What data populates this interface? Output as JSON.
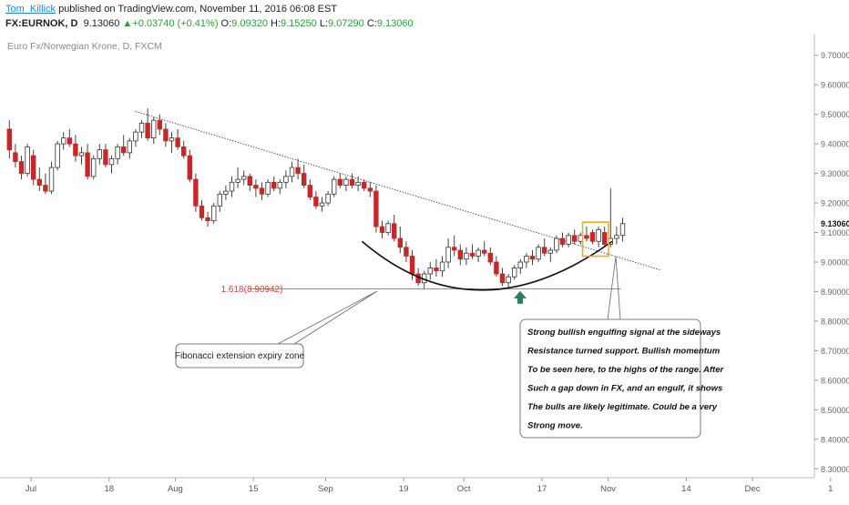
{
  "header": {
    "user": "Tom_Killick",
    "published_text": " published on TradingView.com, November 11, 2016 06:08 EST",
    "symbol": "FX:EURNOK, D",
    "last": "9.13060",
    "change_arrow": "▲",
    "change": "+0.03740 (+0.41%)",
    "o_label": "O:",
    "o_value": "9.09320",
    "h_label": "H:",
    "h_value": "9.15250",
    "l_label": "L:",
    "l_value": "9.07290",
    "c_label": "C:",
    "c_value": "9.13060"
  },
  "chart_data": {
    "type": "candlestick",
    "title": "Euro Fx/Norwegian Krone, D, FXCM",
    "ylim": [
      8.27,
      9.77
    ],
    "y_ticks": [
      9.7,
      9.6,
      9.5,
      9.4,
      9.3,
      9.2,
      9.1,
      9.0,
      8.9,
      8.8,
      8.7,
      8.6,
      8.5,
      8.4,
      8.3
    ],
    "y_tick_labels": [
      "9.70000",
      "9.60000",
      "9.50000",
      "9.40000",
      "9.30000",
      "9.20000",
      "9.10000",
      "9.00000",
      "8.90000",
      "8.80000",
      "8.70000",
      "8.60000",
      "8.50000",
      "8.40000",
      "8.30000"
    ],
    "x_tick_labels": [
      "Jul",
      "18",
      "Aug",
      "15",
      "Sep",
      "19",
      "Oct",
      "17",
      "Nov",
      "14",
      "Dec",
      "1"
    ],
    "x_tick_index": [
      0,
      13,
      24,
      37,
      49,
      62,
      72,
      85,
      96,
      109,
      120,
      133
    ],
    "last_price_label": "9.13060",
    "last_price": 9.1306,
    "fib_label": "1.618(8.90942)",
    "fib_level": 8.90942,
    "fib_start_index": 31,
    "grid": false,
    "colors": {
      "up": "#ffffff",
      "down": "#c62828",
      "wick": "#444444",
      "fib": "#e53935",
      "box": "#f5a623",
      "arrow": "#2e7d5b",
      "trendline": "#555555"
    },
    "trendline": {
      "from_index": 21,
      "from_value": 9.51,
      "to_index": 104,
      "to_value": 9.0
    },
    "curve": {
      "from_index": 59,
      "from_value": 9.07,
      "low_index": 78,
      "low_value": 8.905,
      "to_index": 100,
      "to_value": 9.07
    },
    "highlight_box": {
      "from_index": 96,
      "to_index": 99,
      "low": 9.02,
      "high": 9.135
    },
    "arrow_index": 85,
    "arrow_value": 8.905,
    "candles": [
      {
        "i": 0,
        "o": 9.45,
        "h": 9.48,
        "l": 9.35,
        "c": 9.38
      },
      {
        "i": 1,
        "o": 9.37,
        "h": 9.4,
        "l": 9.32,
        "c": 9.34
      },
      {
        "i": 2,
        "o": 9.34,
        "h": 9.36,
        "l": 9.28,
        "c": 9.3
      },
      {
        "i": 3,
        "o": 9.3,
        "h": 9.4,
        "l": 9.29,
        "c": 9.39
      },
      {
        "i": 4,
        "o": 9.36,
        "h": 9.38,
        "l": 9.26,
        "c": 9.28
      },
      {
        "i": 5,
        "o": 9.28,
        "h": 9.32,
        "l": 9.24,
        "c": 9.26
      },
      {
        "i": 6,
        "o": 9.26,
        "h": 9.3,
        "l": 9.23,
        "c": 9.24
      },
      {
        "i": 7,
        "o": 9.24,
        "h": 9.34,
        "l": 9.23,
        "c": 9.32
      },
      {
        "i": 8,
        "o": 9.32,
        "h": 9.41,
        "l": 9.31,
        "c": 9.4
      },
      {
        "i": 9,
        "o": 9.4,
        "h": 9.44,
        "l": 9.38,
        "c": 9.42
      },
      {
        "i": 10,
        "o": 9.42,
        "h": 9.45,
        "l": 9.39,
        "c": 9.4
      },
      {
        "i": 11,
        "o": 9.4,
        "h": 9.43,
        "l": 9.34,
        "c": 9.36
      },
      {
        "i": 12,
        "o": 9.36,
        "h": 9.39,
        "l": 9.33,
        "c": 9.37
      },
      {
        "i": 13,
        "o": 9.37,
        "h": 9.4,
        "l": 9.28,
        "c": 9.29
      },
      {
        "i": 14,
        "o": 9.29,
        "h": 9.36,
        "l": 9.28,
        "c": 9.35
      },
      {
        "i": 15,
        "o": 9.35,
        "h": 9.4,
        "l": 9.33,
        "c": 9.38
      },
      {
        "i": 16,
        "o": 9.38,
        "h": 9.4,
        "l": 9.32,
        "c": 9.33
      },
      {
        "i": 17,
        "o": 9.33,
        "h": 9.36,
        "l": 9.3,
        "c": 9.35
      },
      {
        "i": 18,
        "o": 9.35,
        "h": 9.4,
        "l": 9.33,
        "c": 9.39
      },
      {
        "i": 19,
        "o": 9.39,
        "h": 9.43,
        "l": 9.36,
        "c": 9.37
      },
      {
        "i": 20,
        "o": 9.37,
        "h": 9.42,
        "l": 9.35,
        "c": 9.41
      },
      {
        "i": 21,
        "o": 9.41,
        "h": 9.45,
        "l": 9.39,
        "c": 9.44
      },
      {
        "i": 22,
        "o": 9.44,
        "h": 9.48,
        "l": 9.42,
        "c": 9.47
      },
      {
        "i": 23,
        "o": 9.47,
        "h": 9.52,
        "l": 9.41,
        "c": 9.42
      },
      {
        "i": 24,
        "o": 9.42,
        "h": 9.49,
        "l": 9.4,
        "c": 9.48
      },
      {
        "i": 25,
        "o": 9.48,
        "h": 9.5,
        "l": 9.43,
        "c": 9.45
      },
      {
        "i": 26,
        "o": 9.45,
        "h": 9.47,
        "l": 9.39,
        "c": 9.41
      },
      {
        "i": 27,
        "o": 9.41,
        "h": 9.44,
        "l": 9.37,
        "c": 9.42
      },
      {
        "i": 28,
        "o": 9.42,
        "h": 9.45,
        "l": 9.38,
        "c": 9.39
      },
      {
        "i": 29,
        "o": 9.39,
        "h": 9.41,
        "l": 9.35,
        "c": 9.36
      },
      {
        "i": 30,
        "o": 9.36,
        "h": 9.38,
        "l": 9.27,
        "c": 9.28
      },
      {
        "i": 31,
        "o": 9.28,
        "h": 9.3,
        "l": 9.17,
        "c": 9.19
      },
      {
        "i": 32,
        "o": 9.19,
        "h": 9.21,
        "l": 9.14,
        "c": 9.15
      },
      {
        "i": 33,
        "o": 9.15,
        "h": 9.17,
        "l": 9.12,
        "c": 9.14
      },
      {
        "i": 34,
        "o": 9.14,
        "h": 9.2,
        "l": 9.13,
        "c": 9.19
      },
      {
        "i": 35,
        "o": 9.19,
        "h": 9.24,
        "l": 9.17,
        "c": 9.23
      },
      {
        "i": 36,
        "o": 9.23,
        "h": 9.26,
        "l": 9.21,
        "c": 9.24
      },
      {
        "i": 37,
        "o": 9.24,
        "h": 9.29,
        "l": 9.22,
        "c": 9.27
      },
      {
        "i": 38,
        "o": 9.27,
        "h": 9.32,
        "l": 9.25,
        "c": 9.28
      },
      {
        "i": 39,
        "o": 9.28,
        "h": 9.31,
        "l": 9.26,
        "c": 9.29
      },
      {
        "i": 40,
        "o": 9.29,
        "h": 9.3,
        "l": 9.24,
        "c": 9.26
      },
      {
        "i": 41,
        "o": 9.26,
        "h": 9.28,
        "l": 9.22,
        "c": 9.25
      },
      {
        "i": 42,
        "o": 9.25,
        "h": 9.27,
        "l": 9.21,
        "c": 9.23
      },
      {
        "i": 43,
        "o": 9.23,
        "h": 9.28,
        "l": 9.22,
        "c": 9.27
      },
      {
        "i": 44,
        "o": 9.27,
        "h": 9.29,
        "l": 9.24,
        "c": 9.25
      },
      {
        "i": 45,
        "o": 9.25,
        "h": 9.28,
        "l": 9.23,
        "c": 9.27
      },
      {
        "i": 46,
        "o": 9.27,
        "h": 9.31,
        "l": 9.25,
        "c": 9.29
      },
      {
        "i": 47,
        "o": 9.29,
        "h": 9.34,
        "l": 9.27,
        "c": 9.32
      },
      {
        "i": 48,
        "o": 9.32,
        "h": 9.35,
        "l": 9.28,
        "c": 9.3
      },
      {
        "i": 49,
        "o": 9.3,
        "h": 9.33,
        "l": 9.25,
        "c": 9.26
      },
      {
        "i": 50,
        "o": 9.26,
        "h": 9.28,
        "l": 9.21,
        "c": 9.22
      },
      {
        "i": 51,
        "o": 9.22,
        "h": 9.24,
        "l": 9.18,
        "c": 9.19
      },
      {
        "i": 52,
        "o": 9.19,
        "h": 9.22,
        "l": 9.17,
        "c": 9.2
      },
      {
        "i": 53,
        "o": 9.2,
        "h": 9.24,
        "l": 9.19,
        "c": 9.23
      },
      {
        "i": 54,
        "o": 9.23,
        "h": 9.29,
        "l": 9.22,
        "c": 9.28
      },
      {
        "i": 55,
        "o": 9.28,
        "h": 9.3,
        "l": 9.25,
        "c": 9.26
      },
      {
        "i": 56,
        "o": 9.26,
        "h": 9.29,
        "l": 9.24,
        "c": 9.28
      },
      {
        "i": 57,
        "o": 9.28,
        "h": 9.3,
        "l": 9.25,
        "c": 9.26
      },
      {
        "i": 58,
        "o": 9.26,
        "h": 9.29,
        "l": 9.24,
        "c": 9.27
      },
      {
        "i": 59,
        "o": 9.27,
        "h": 9.28,
        "l": 9.24,
        "c": 9.25
      },
      {
        "i": 60,
        "o": 9.25,
        "h": 9.27,
        "l": 9.22,
        "c": 9.24
      },
      {
        "i": 61,
        "o": 9.24,
        "h": 9.26,
        "l": 9.1,
        "c": 9.12
      },
      {
        "i": 62,
        "o": 9.12,
        "h": 9.14,
        "l": 9.08,
        "c": 9.1
      },
      {
        "i": 63,
        "o": 9.1,
        "h": 9.14,
        "l": 9.09,
        "c": 9.13
      },
      {
        "i": 64,
        "o": 9.13,
        "h": 9.16,
        "l": 9.07,
        "c": 9.08
      },
      {
        "i": 65,
        "o": 9.08,
        "h": 9.12,
        "l": 9.03,
        "c": 9.05
      },
      {
        "i": 66,
        "o": 9.05,
        "h": 9.07,
        "l": 9.0,
        "c": 9.02
      },
      {
        "i": 67,
        "o": 9.02,
        "h": 9.04,
        "l": 8.94,
        "c": 8.96
      },
      {
        "i": 68,
        "o": 8.96,
        "h": 8.98,
        "l": 8.92,
        "c": 8.93
      },
      {
        "i": 69,
        "o": 8.93,
        "h": 8.97,
        "l": 8.91,
        "c": 8.96
      },
      {
        "i": 70,
        "o": 8.96,
        "h": 9.0,
        "l": 8.94,
        "c": 8.98
      },
      {
        "i": 71,
        "o": 8.98,
        "h": 9.01,
        "l": 8.95,
        "c": 8.97
      },
      {
        "i": 72,
        "o": 8.97,
        "h": 9.02,
        "l": 8.95,
        "c": 9.0
      },
      {
        "i": 73,
        "o": 9.0,
        "h": 9.08,
        "l": 8.98,
        "c": 9.05
      },
      {
        "i": 74,
        "o": 9.05,
        "h": 9.09,
        "l": 9.02,
        "c": 9.04
      },
      {
        "i": 75,
        "o": 9.04,
        "h": 9.06,
        "l": 8.99,
        "c": 9.01
      },
      {
        "i": 76,
        "o": 9.01,
        "h": 9.05,
        "l": 8.99,
        "c": 9.03
      },
      {
        "i": 77,
        "o": 9.03,
        "h": 9.06,
        "l": 9.01,
        "c": 9.02
      },
      {
        "i": 78,
        "o": 9.02,
        "h": 9.05,
        "l": 9.0,
        "c": 9.04
      },
      {
        "i": 79,
        "o": 9.04,
        "h": 9.07,
        "l": 9.02,
        "c": 9.03
      },
      {
        "i": 80,
        "o": 9.03,
        "h": 9.05,
        "l": 8.99,
        "c": 9.0
      },
      {
        "i": 81,
        "o": 9.0,
        "h": 9.02,
        "l": 8.95,
        "c": 8.96
      },
      {
        "i": 82,
        "o": 8.96,
        "h": 8.98,
        "l": 8.92,
        "c": 8.93
      },
      {
        "i": 83,
        "o": 8.93,
        "h": 8.96,
        "l": 8.91,
        "c": 8.95
      },
      {
        "i": 84,
        "o": 8.95,
        "h": 8.99,
        "l": 8.94,
        "c": 8.98
      },
      {
        "i": 85,
        "o": 8.98,
        "h": 9.01,
        "l": 8.96,
        "c": 9.0
      },
      {
        "i": 86,
        "o": 9.0,
        "h": 9.03,
        "l": 8.98,
        "c": 9.02
      },
      {
        "i": 87,
        "o": 9.02,
        "h": 9.04,
        "l": 8.99,
        "c": 9.01
      },
      {
        "i": 88,
        "o": 9.01,
        "h": 9.06,
        "l": 9.0,
        "c": 9.05
      },
      {
        "i": 89,
        "o": 9.05,
        "h": 9.08,
        "l": 9.02,
        "c": 9.03
      },
      {
        "i": 90,
        "o": 9.03,
        "h": 9.05,
        "l": 9.0,
        "c": 9.04
      },
      {
        "i": 91,
        "o": 9.04,
        "h": 9.09,
        "l": 9.03,
        "c": 9.08
      },
      {
        "i": 92,
        "o": 9.08,
        "h": 9.1,
        "l": 9.05,
        "c": 9.06
      },
      {
        "i": 93,
        "o": 9.06,
        "h": 9.1,
        "l": 9.05,
        "c": 9.09
      },
      {
        "i": 94,
        "o": 9.09,
        "h": 9.11,
        "l": 9.06,
        "c": 9.07
      },
      {
        "i": 95,
        "o": 9.07,
        "h": 9.1,
        "l": 9.06,
        "c": 9.09
      },
      {
        "i": 96,
        "o": 9.09,
        "h": 9.12,
        "l": 9.07,
        "c": 9.08
      },
      {
        "i": 97,
        "o": 9.1,
        "h": 9.11,
        "l": 9.06,
        "c": 9.07
      },
      {
        "i": 98,
        "o": 9.07,
        "h": 9.12,
        "l": 9.05,
        "c": 9.11
      },
      {
        "i": 99,
        "o": 9.1,
        "h": 9.12,
        "l": 9.05,
        "c": 9.06
      },
      {
        "i": 100,
        "o": 9.06,
        "h": 9.25,
        "l": 9.05,
        "c": 9.08
      },
      {
        "i": 101,
        "o": 9.08,
        "h": 9.12,
        "l": 9.06,
        "c": 9.09
      },
      {
        "i": 102,
        "o": 9.09,
        "h": 9.15,
        "l": 9.07,
        "c": 9.13
      }
    ],
    "annotations": [
      {
        "id": "fib-callout",
        "lines": [
          "Fibonacci extension expiry zone"
        ]
      },
      {
        "id": "engulf-callout",
        "lines": [
          "Strong bullish engulfing signal at the sideways",
          "Resistance turned support. Bullish momentum",
          "To be seen here, to the highs of the range. After",
          "Such a gap down in FX, and an engulf, it shows",
          "The bulls are likely legitimate. Could be a very",
          "Strong move."
        ]
      }
    ]
  }
}
